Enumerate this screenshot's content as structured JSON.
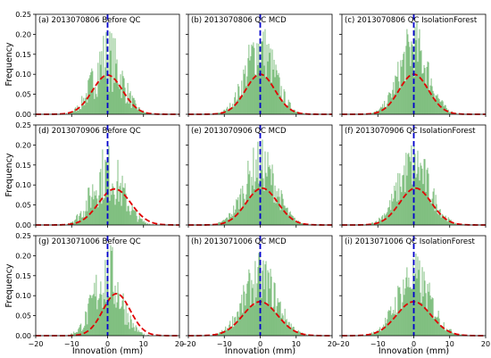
{
  "figure": {
    "ylabel": "Frequency",
    "xlabel": "Innovation (mm)",
    "colors": {
      "hist": "#008000",
      "gauss": "#e00000",
      "zero_line": "#0000cc",
      "axis": "#000000"
    }
  },
  "chart_data": [
    {
      "type": "bar",
      "title": "(a) 2013070806 Before QC",
      "xlim": [
        -20,
        20
      ],
      "ylim": [
        0,
        0.25
      ],
      "xticks": [],
      "yticks": [
        "0.00",
        "0.05",
        "0.10",
        "0.15",
        "0.20",
        "0.25"
      ],
      "vline_x": 0,
      "gauss": {
        "mean": 0.0,
        "peak": 0.098,
        "sigma": 4.2
      },
      "hist": {
        "sigma": 4.0,
        "peak": 0.14,
        "spread": 0.6
      }
    },
    {
      "type": "bar",
      "title": "(b) 2013070806 QC MCD",
      "xlim": [
        -20,
        20
      ],
      "ylim": [
        0,
        0.25
      ],
      "xticks": [],
      "yticks": [],
      "vline_x": 0,
      "gauss": {
        "mean": 0.0,
        "peak": 0.1,
        "sigma": 4.1
      },
      "hist": {
        "sigma": 4.1,
        "peak": 0.165,
        "spread": 0.45
      }
    },
    {
      "type": "bar",
      "title": "(c) 2013070806 QC IsolationForest",
      "xlim": [
        -20,
        20
      ],
      "ylim": [
        0,
        0.25
      ],
      "xticks": [],
      "yticks": [],
      "vline_x": 0,
      "gauss": {
        "mean": 0.0,
        "peak": 0.1,
        "sigma": 4.1
      },
      "hist": {
        "sigma": 4.1,
        "peak": 0.165,
        "spread": 0.45
      }
    },
    {
      "type": "bar",
      "title": "(d) 2013070906 Before QC",
      "xlim": [
        -20,
        20
      ],
      "ylim": [
        0,
        0.25
      ],
      "xticks": [],
      "yticks": [
        "0.00",
        "0.05",
        "0.10",
        "0.15",
        "0.20",
        "0.25"
      ],
      "vline_x": 0,
      "gauss": {
        "mean": 2.0,
        "peak": 0.09,
        "sigma": 4.5
      },
      "hist": {
        "sigma": 4.3,
        "peak": 0.13,
        "spread": 0.6
      }
    },
    {
      "type": "bar",
      "title": "(e) 2013070906 QC MCD",
      "xlim": [
        -20,
        20
      ],
      "ylim": [
        0,
        0.25
      ],
      "xticks": [],
      "yticks": [],
      "vline_x": 0,
      "gauss": {
        "mean": 0.5,
        "peak": 0.092,
        "sigma": 4.4
      },
      "hist": {
        "sigma": 4.4,
        "peak": 0.15,
        "spread": 0.45
      }
    },
    {
      "type": "bar",
      "title": "(f) 2013070906 QC IsolationForest",
      "xlim": [
        -20,
        20
      ],
      "ylim": [
        0,
        0.25
      ],
      "xticks": [],
      "yticks": [],
      "vline_x": 0,
      "gauss": {
        "mean": 0.5,
        "peak": 0.092,
        "sigma": 4.4
      },
      "hist": {
        "sigma": 4.4,
        "peak": 0.15,
        "spread": 0.45
      }
    },
    {
      "type": "bar",
      "title": "(g) 2013071006 Before QC",
      "xlim": [
        -20,
        20
      ],
      "ylim": [
        0,
        0.25
      ],
      "xticks": [
        "−20",
        "−10",
        "0",
        "10",
        "20"
      ],
      "yticks": [
        "0.00",
        "0.05",
        "0.10",
        "0.15",
        "0.20",
        "0.25"
      ],
      "vline_x": 0,
      "gauss": {
        "mean": 2.5,
        "peak": 0.105,
        "sigma": 3.8
      },
      "hist": {
        "sigma": 3.8,
        "peak": 0.15,
        "spread": 0.6
      }
    },
    {
      "type": "bar",
      "title": "(h) 2013071006 QC MCD",
      "xlim": [
        -20,
        20
      ],
      "ylim": [
        0,
        0.25
      ],
      "xticks": [
        "−20",
        "−10",
        "0",
        "10",
        "20"
      ],
      "yticks": [],
      "vline_x": 0,
      "gauss": {
        "mean": 0.0,
        "peak": 0.085,
        "sigma": 4.8
      },
      "hist": {
        "sigma": 4.6,
        "peak": 0.145,
        "spread": 0.45
      }
    },
    {
      "type": "bar",
      "title": "(i) 2013071006 QC IsolationForest",
      "xlim": [
        -20,
        20
      ],
      "ylim": [
        0,
        0.25
      ],
      "xticks": [
        "−20",
        "−10",
        "0",
        "10",
        "20"
      ],
      "yticks": [],
      "vline_x": 0,
      "gauss": {
        "mean": 0.0,
        "peak": 0.085,
        "sigma": 4.8
      },
      "hist": {
        "sigma": 4.6,
        "peak": 0.145,
        "spread": 0.45
      }
    }
  ]
}
